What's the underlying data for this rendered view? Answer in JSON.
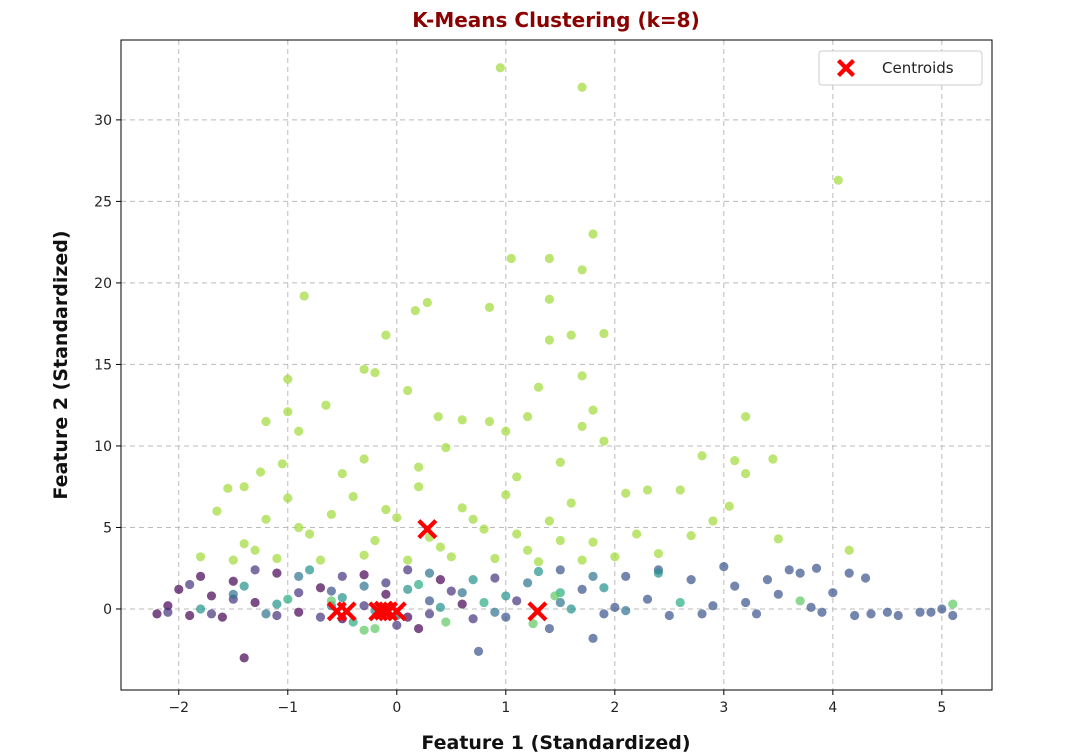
{
  "chart_data": {
    "type": "scatter",
    "title": "K-Means Clustering (k=8)",
    "xlabel": "Feature 1 (Standardized)",
    "ylabel": "Feature 2 (Standardized)",
    "xlim": [
      -2.53,
      5.46
    ],
    "ylim": [
      -4.97,
      34.9
    ],
    "xticks": [
      -2,
      -1,
      0,
      1,
      2,
      3,
      4,
      5
    ],
    "yticks": [
      0,
      5,
      10,
      15,
      20,
      25,
      30
    ],
    "grid": true,
    "legend": {
      "placement": "top-right",
      "entries": [
        {
          "name": "Centroids",
          "color": "#ff0000",
          "marker": "X"
        }
      ]
    },
    "cluster_colors": [
      "#440154",
      "#46327e",
      "#3b528b",
      "#2c728e",
      "#21918c",
      "#28ae80",
      "#5ec962",
      "#a0da39"
    ],
    "point_alpha": 0.7,
    "points": [
      [
        0.95,
        33.2,
        7
      ],
      [
        1.7,
        32.0,
        7
      ],
      [
        4.05,
        26.3,
        7
      ],
      [
        1.8,
        23.0,
        7
      ],
      [
        1.05,
        21.5,
        7
      ],
      [
        1.4,
        21.5,
        7
      ],
      [
        1.7,
        20.8,
        7
      ],
      [
        -0.85,
        19.2,
        7
      ],
      [
        1.4,
        19.0,
        7
      ],
      [
        0.17,
        18.3,
        7
      ],
      [
        0.28,
        18.8,
        7
      ],
      [
        0.85,
        18.5,
        7
      ],
      [
        -0.1,
        16.8,
        7
      ],
      [
        1.6,
        16.8,
        7
      ],
      [
        1.9,
        16.9,
        7
      ],
      [
        1.4,
        16.5,
        7
      ],
      [
        -0.3,
        14.7,
        7
      ],
      [
        -0.2,
        14.5,
        7
      ],
      [
        -1.0,
        14.1,
        7
      ],
      [
        1.7,
        14.3,
        7
      ],
      [
        1.3,
        13.6,
        7
      ],
      [
        0.1,
        13.4,
        7
      ],
      [
        -0.65,
        12.5,
        7
      ],
      [
        -1.0,
        12.1,
        7
      ],
      [
        1.8,
        12.2,
        7
      ],
      [
        -1.2,
        11.5,
        7
      ],
      [
        0.6,
        11.6,
        7
      ],
      [
        1.2,
        11.8,
        7
      ],
      [
        3.2,
        11.8,
        7
      ],
      [
        0.85,
        11.5,
        7
      ],
      [
        1.7,
        11.2,
        7
      ],
      [
        0.38,
        11.8,
        7
      ],
      [
        1.0,
        10.9,
        7
      ],
      [
        1.9,
        10.3,
        7
      ],
      [
        -0.9,
        10.9,
        7
      ],
      [
        2.8,
        9.4,
        7
      ],
      [
        3.1,
        9.1,
        7
      ],
      [
        3.45,
        9.2,
        7
      ],
      [
        3.2,
        8.3,
        7
      ],
      [
        0.45,
        9.9,
        7
      ],
      [
        -0.3,
        9.2,
        7
      ],
      [
        -1.05,
        8.9,
        7
      ],
      [
        -1.25,
        8.4,
        7
      ],
      [
        1.5,
        9.0,
        7
      ],
      [
        1.1,
        8.1,
        7
      ],
      [
        0.2,
        8.7,
        7
      ],
      [
        -0.5,
        8.3,
        7
      ],
      [
        2.6,
        7.3,
        7
      ],
      [
        2.3,
        7.3,
        7
      ],
      [
        2.1,
        7.1,
        7
      ],
      [
        3.05,
        6.3,
        7
      ],
      [
        2.9,
        5.4,
        7
      ],
      [
        3.5,
        4.3,
        7
      ],
      [
        4.15,
        3.6,
        7
      ],
      [
        -1.65,
        6.0,
        7
      ],
      [
        -1.55,
        7.4,
        7
      ],
      [
        -1.4,
        7.5,
        7
      ],
      [
        -1.8,
        3.2,
        7
      ],
      [
        -1.4,
        4.0,
        7
      ],
      [
        -1.2,
        5.5,
        7
      ],
      [
        -1.0,
        6.8,
        7
      ],
      [
        -0.8,
        4.6,
        7
      ],
      [
        -0.6,
        5.8,
        7
      ],
      [
        -0.4,
        6.9,
        7
      ],
      [
        -0.2,
        4.2,
        7
      ],
      [
        0.0,
        5.6,
        7
      ],
      [
        0.2,
        7.5,
        7
      ],
      [
        0.4,
        3.8,
        7
      ],
      [
        0.6,
        6.2,
        7
      ],
      [
        0.8,
        4.9,
        7
      ],
      [
        1.0,
        7.0,
        7
      ],
      [
        1.2,
        3.6,
        7
      ],
      [
        1.4,
        5.4,
        7
      ],
      [
        1.6,
        6.5,
        7
      ],
      [
        1.8,
        4.1,
        7
      ],
      [
        2.0,
        3.2,
        7
      ],
      [
        2.2,
        4.6,
        7
      ],
      [
        2.4,
        3.4,
        7
      ],
      [
        2.7,
        4.5,
        7
      ],
      [
        -1.5,
        3.0,
        7
      ],
      [
        -1.1,
        3.1,
        7
      ],
      [
        -0.7,
        3.0,
        7
      ],
      [
        -0.3,
        3.3,
        7
      ],
      [
        0.1,
        3.0,
        7
      ],
      [
        0.5,
        3.2,
        7
      ],
      [
        0.9,
        3.1,
        7
      ],
      [
        1.3,
        2.9,
        7
      ],
      [
        1.7,
        3.0,
        7
      ],
      [
        -0.9,
        5.0,
        7
      ],
      [
        -0.1,
        6.1,
        7
      ],
      [
        0.7,
        5.5,
        7
      ],
      [
        1.5,
        4.2,
        7
      ],
      [
        -1.3,
        3.6,
        7
      ],
      [
        0.3,
        4.4,
        7
      ],
      [
        1.1,
        4.6,
        7
      ],
      [
        -2.2,
        -0.3,
        0
      ],
      [
        -2.1,
        0.2,
        0
      ],
      [
        -2.0,
        1.2,
        0
      ],
      [
        -1.9,
        -0.4,
        0
      ],
      [
        -1.8,
        2.0,
        0
      ],
      [
        -1.7,
        0.8,
        0
      ],
      [
        -1.6,
        -0.5,
        0
      ],
      [
        -1.5,
        1.7,
        0
      ],
      [
        -1.4,
        -3.0,
        0
      ],
      [
        -1.3,
        0.4,
        0
      ],
      [
        -1.1,
        2.2,
        0
      ],
      [
        -0.9,
        -0.2,
        0
      ],
      [
        -0.7,
        1.3,
        0
      ],
      [
        -0.5,
        -0.6,
        0
      ],
      [
        -0.3,
        2.1,
        0
      ],
      [
        -0.1,
        0.9,
        0
      ],
      [
        0.1,
        -0.5,
        0
      ],
      [
        0.2,
        -1.2,
        0
      ],
      [
        0.4,
        1.8,
        0
      ],
      [
        0.6,
        0.3,
        0
      ],
      [
        -2.1,
        -0.2,
        1
      ],
      [
        -1.9,
        1.5,
        1
      ],
      [
        -1.7,
        -0.3,
        1
      ],
      [
        -1.5,
        0.6,
        1
      ],
      [
        -1.3,
        2.4,
        1
      ],
      [
        -1.1,
        -0.4,
        1
      ],
      [
        -0.9,
        1.0,
        1
      ],
      [
        -0.7,
        -0.5,
        1
      ],
      [
        -0.5,
        2.0,
        1
      ],
      [
        -0.3,
        0.2,
        1
      ],
      [
        -0.1,
        1.6,
        1
      ],
      [
        0.1,
        2.4,
        1
      ],
      [
        0.3,
        -0.3,
        1
      ],
      [
        0.5,
        1.1,
        1
      ],
      [
        0.7,
        -0.6,
        1
      ],
      [
        0.9,
        1.9,
        1
      ],
      [
        1.1,
        0.5,
        1
      ],
      [
        0.0,
        -1.0,
        1
      ],
      [
        1.5,
        2.4,
        2
      ],
      [
        1.7,
        1.2,
        2
      ],
      [
        1.9,
        -0.3,
        2
      ],
      [
        2.1,
        2.0,
        2
      ],
      [
        2.3,
        0.6,
        2
      ],
      [
        2.5,
        -0.4,
        2
      ],
      [
        2.7,
        1.8,
        2
      ],
      [
        2.9,
        0.2,
        2
      ],
      [
        3.1,
        1.4,
        2
      ],
      [
        3.3,
        -0.3,
        2
      ],
      [
        3.5,
        0.9,
        2
      ],
      [
        3.7,
        2.2,
        2
      ],
      [
        3.9,
        -0.2,
        2
      ],
      [
        4.0,
        1.0,
        2
      ],
      [
        4.2,
        -0.4,
        2
      ],
      [
        4.35,
        -0.3,
        2
      ],
      [
        4.5,
        -0.2,
        2
      ],
      [
        4.6,
        -0.4,
        2
      ],
      [
        4.8,
        -0.2,
        2
      ],
      [
        4.9,
        -0.2,
        2
      ],
      [
        5.0,
        0.0,
        2
      ],
      [
        5.1,
        -0.4,
        2
      ],
      [
        4.15,
        2.2,
        2
      ],
      [
        4.3,
        1.9,
        2
      ],
      [
        3.85,
        2.5,
        2
      ],
      [
        3.6,
        2.4,
        2
      ],
      [
        3.4,
        1.8,
        2
      ],
      [
        3.0,
        2.6,
        2
      ],
      [
        2.4,
        2.4,
        2
      ],
      [
        0.75,
        -2.6,
        2
      ],
      [
        1.8,
        -1.8,
        2
      ],
      [
        1.4,
        -1.2,
        2
      ],
      [
        -0.6,
        1.1,
        2
      ],
      [
        0.3,
        0.5,
        2
      ],
      [
        1.0,
        -0.5,
        2
      ],
      [
        2.0,
        0.1,
        2
      ],
      [
        2.8,
        -0.3,
        2
      ],
      [
        3.2,
        0.4,
        2
      ],
      [
        3.8,
        0.1,
        2
      ],
      [
        -1.5,
        0.9,
        3
      ],
      [
        -1.2,
        -0.3,
        3
      ],
      [
        -0.9,
        2.0,
        3
      ],
      [
        -0.6,
        0.2,
        3
      ],
      [
        -0.3,
        1.4,
        3
      ],
      [
        0.0,
        -0.4,
        3
      ],
      [
        0.3,
        2.2,
        3
      ],
      [
        0.6,
        1.0,
        3
      ],
      [
        0.9,
        -0.2,
        3
      ],
      [
        1.2,
        1.6,
        3
      ],
      [
        1.5,
        0.4,
        3
      ],
      [
        1.8,
        2.0,
        3
      ],
      [
        2.1,
        -0.1,
        3
      ],
      [
        -1.4,
        1.4,
        4
      ],
      [
        -1.1,
        0.3,
        4
      ],
      [
        -0.8,
        2.4,
        4
      ],
      [
        -0.5,
        0.7,
        4
      ],
      [
        -0.2,
        -0.1,
        4
      ],
      [
        0.1,
        1.2,
        4
      ],
      [
        0.4,
        0.1,
        4
      ],
      [
        0.7,
        1.8,
        4
      ],
      [
        1.0,
        0.8,
        4
      ],
      [
        1.3,
        2.3,
        4
      ],
      [
        1.6,
        0.0,
        4
      ],
      [
        1.9,
        1.3,
        4
      ],
      [
        2.4,
        2.2,
        4
      ],
      [
        -1.8,
        0.0,
        4
      ],
      [
        -1.0,
        0.6,
        5
      ],
      [
        0.2,
        1.5,
        5
      ],
      [
        0.8,
        0.4,
        5
      ],
      [
        1.5,
        1.0,
        5
      ],
      [
        -0.4,
        -0.8,
        5
      ],
      [
        2.6,
        0.4,
        5
      ],
      [
        -0.3,
        -1.3,
        6
      ],
      [
        -0.2,
        -1.2,
        6
      ],
      [
        0.45,
        -0.8,
        6
      ],
      [
        1.25,
        -0.9,
        6
      ],
      [
        3.7,
        0.5,
        6
      ],
      [
        5.1,
        0.3,
        6
      ],
      [
        1.45,
        0.8,
        6
      ],
      [
        -0.6,
        0.5,
        6
      ]
    ],
    "centroids": [
      [
        -0.55,
        -0.15
      ],
      [
        -0.46,
        -0.15
      ],
      [
        -0.17,
        -0.15
      ],
      [
        -0.08,
        -0.15
      ],
      [
        0.0,
        -0.15
      ],
      [
        0.28,
        4.9
      ],
      [
        1.29,
        -0.15
      ],
      [
        -0.12,
        -0.1
      ]
    ]
  }
}
